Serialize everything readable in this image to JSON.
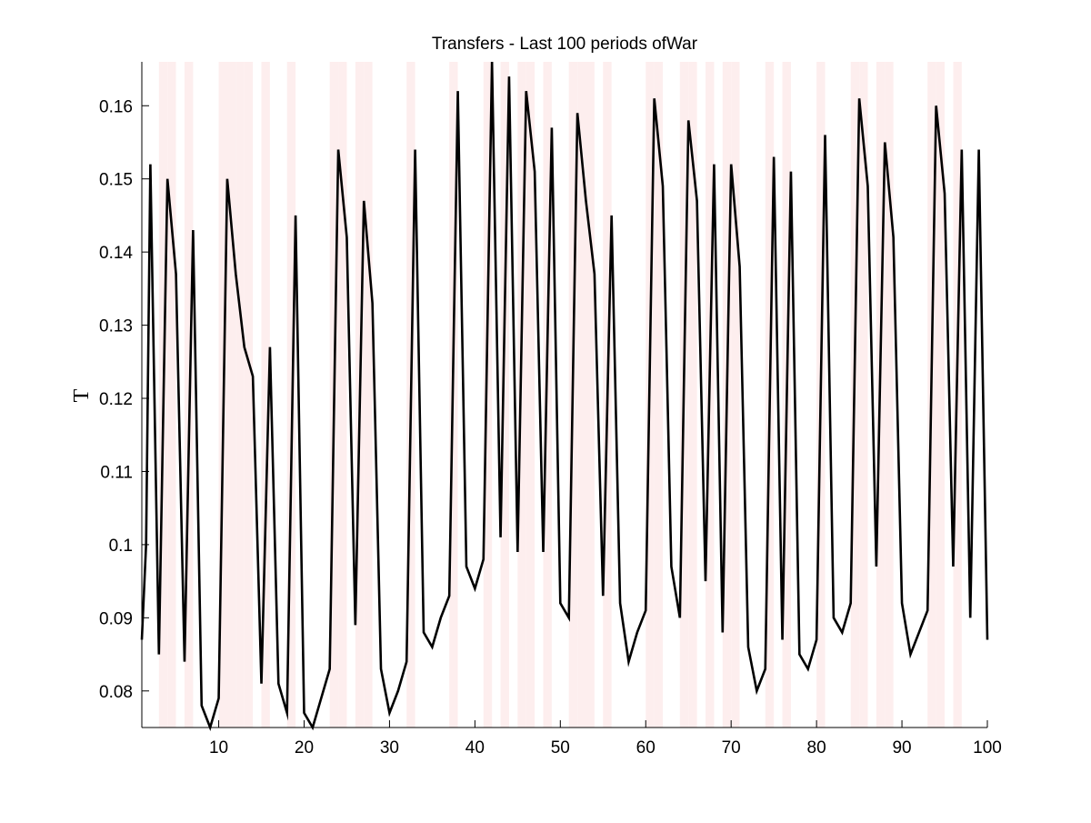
{
  "chart_data": {
    "type": "line",
    "title": "Transfers - Last 100 periods ofWar",
    "xlabel": "",
    "ylabel": "T",
    "xlim": [
      1,
      100
    ],
    "ylim": [
      0.075,
      0.166
    ],
    "x_ticks": [
      10,
      20,
      30,
      40,
      50,
      60,
      70,
      80,
      90,
      100
    ],
    "x_tick_labels": [
      "10",
      "20",
      "30",
      "40",
      "50",
      "60",
      "70",
      "80",
      "90",
      "100"
    ],
    "y_ticks": [
      0.08,
      0.09,
      0.1,
      0.11,
      0.12,
      0.13,
      0.14,
      0.15,
      0.16
    ],
    "y_tick_labels": [
      "0.08",
      "0.09",
      "0.1",
      "0.11",
      "0.12",
      "0.13",
      "0.14",
      "0.15",
      "0.16"
    ],
    "grid": false,
    "line_color": "#000000",
    "band_color": "#fdeeee",
    "shaded_periods": [
      3,
      4,
      6,
      10,
      11,
      12,
      13,
      15,
      18,
      23,
      24,
      26,
      27,
      32,
      37,
      41,
      43,
      45,
      46,
      48,
      51,
      52,
      53,
      55,
      60,
      61,
      64,
      65,
      67,
      69,
      70,
      74,
      76,
      80,
      84,
      85,
      87,
      88,
      93,
      94,
      96
    ],
    "series": [
      {
        "x": [
          1,
          1.5,
          2,
          3,
          4,
          5,
          6,
          7,
          8,
          9,
          10,
          11,
          12,
          13,
          14,
          15,
          16,
          17,
          18,
          19,
          20,
          21,
          22,
          23,
          24,
          25,
          26,
          27,
          28,
          29,
          30,
          31,
          32,
          33,
          34,
          35,
          36,
          37,
          38,
          39,
          40,
          41,
          42,
          43,
          44,
          45,
          46,
          47,
          48,
          49,
          50,
          51,
          52,
          53,
          54,
          55,
          56,
          57,
          58,
          59,
          60,
          61,
          62,
          63,
          64,
          65,
          66,
          67,
          68,
          69,
          70,
          71,
          72,
          73,
          74,
          75,
          76,
          77,
          78,
          79,
          80,
          81,
          82,
          83,
          84,
          85,
          86,
          87,
          88,
          89,
          90,
          91,
          92,
          93,
          94,
          95,
          96,
          97,
          98,
          99,
          100
        ],
        "values": [
          0.087,
          0.1,
          0.152,
          0.085,
          0.15,
          0.137,
          0.084,
          0.143,
          0.078,
          0.075,
          0.079,
          0.15,
          0.137,
          0.127,
          0.123,
          0.081,
          0.127,
          0.081,
          0.077,
          0.145,
          0.077,
          0.075,
          0.079,
          0.083,
          0.154,
          0.142,
          0.089,
          0.147,
          0.133,
          0.083,
          0.077,
          0.08,
          0.084,
          0.154,
          0.088,
          0.086,
          0.09,
          0.093,
          0.162,
          0.097,
          0.094,
          0.098,
          0.166,
          0.101,
          0.164,
          0.099,
          0.162,
          0.151,
          0.099,
          0.157,
          0.092,
          0.09,
          0.159,
          0.147,
          0.137,
          0.093,
          0.145,
          0.092,
          0.084,
          0.088,
          0.091,
          0.161,
          0.149,
          0.097,
          0.09,
          0.158,
          0.147,
          0.095,
          0.152,
          0.088,
          0.152,
          0.138,
          0.086,
          0.08,
          0.083,
          0.153,
          0.087,
          0.151,
          0.085,
          0.083,
          0.087,
          0.156,
          0.09,
          0.088,
          0.092,
          0.161,
          0.149,
          0.097,
          0.155,
          0.142,
          0.092,
          0.085,
          0.088,
          0.091,
          0.16,
          0.148,
          0.097,
          0.154,
          0.09,
          0.154,
          0.087
        ]
      }
    ]
  }
}
